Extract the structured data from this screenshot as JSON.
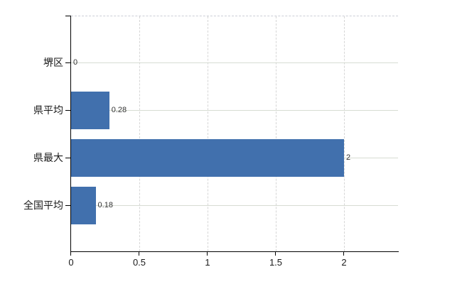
{
  "chart_data": {
    "type": "bar",
    "orientation": "horizontal",
    "categories": [
      "堺区",
      "県平均",
      "県最大",
      "全国平均"
    ],
    "values": [
      0,
      0.28,
      2,
      0.18
    ],
    "value_labels": [
      "0",
      "0.28",
      "2",
      "0.18"
    ],
    "x_ticks": [
      0,
      0.5,
      1,
      1.5,
      2
    ],
    "x_tick_labels": [
      "0",
      "0.5",
      "1",
      "1.5",
      "2"
    ],
    "xlim": [
      0,
      2.4
    ],
    "title": "",
    "xlabel": "",
    "ylabel": "",
    "grid": true,
    "legend": false
  },
  "colors": {
    "background": "#ffffff",
    "bar": "#4170ad",
    "axis": "#000000",
    "gridline_h": "#d7dcd3",
    "gridline_v": "#d6d6d6",
    "top_border": "#ccced6",
    "value_label": "#333333",
    "tick_label": "#1a1a1a"
  }
}
